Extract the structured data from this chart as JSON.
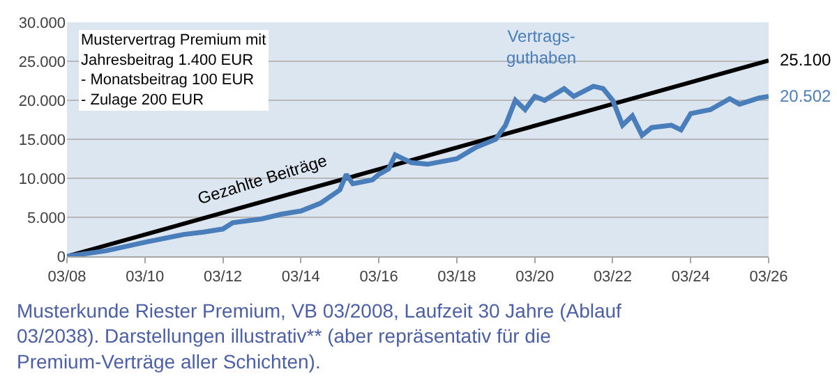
{
  "chart_data": {
    "type": "line",
    "annotations": [
      "Mustervertrag Premium mit\nJahresbeitrag 1.400 EUR\n- Monatsbeitrag 100 EUR\n- Zulage 200 EUR",
      "Musterkunde Riester Premium, VB 03/2008, Laufzeit 30 Jahre (Ablauf 03/2038). Darstellungen illustrativ** (aber repräsentativ für die Premium-Verträge aller Schichten)."
    ],
    "series": [
      {
        "name": "Gezahlte Beiträge",
        "color": "#000000",
        "x": [
          "2008-03",
          "2013-03",
          "2026-03"
        ],
        "values": [
          0,
          6970,
          25100
        ],
        "value_labels": [
          null,
          null,
          "25.100"
        ]
      },
      {
        "name": "Vertrags-\nguthaben",
        "color": "#4a7ebb",
        "x": [
          "2008-03",
          "2009-03",
          "2010-03",
          "2011-03",
          "2011-09",
          "2012-03",
          "2012-06",
          "2013-03",
          "2013-09",
          "2014-03",
          "2014-09",
          "2015-03",
          "2015-05",
          "2015-07",
          "2016-01",
          "2016-03",
          "2016-06",
          "2016-08",
          "2017-01",
          "2017-06",
          "2018-03",
          "2018-09",
          "2019-03",
          "2019-06",
          "2019-09",
          "2019-12",
          "2020-03",
          "2020-06",
          "2020-12",
          "2021-03",
          "2021-09",
          "2021-12",
          "2022-03",
          "2022-06",
          "2022-09",
          "2022-12",
          "2023-03",
          "2023-09",
          "2023-12",
          "2024-03",
          "2024-09",
          "2025-03",
          "2025-06",
          "2025-12",
          "2026-03"
        ],
        "values": [
          0,
          700,
          1800,
          2800,
          3100,
          3500,
          4300,
          4800,
          5400,
          5800,
          6800,
          8500,
          10500,
          9300,
          9800,
          10500,
          11200,
          13000,
          12000,
          11800,
          12500,
          14000,
          15000,
          16800,
          20000,
          18800,
          20500,
          20000,
          21500,
          20500,
          21800,
          21500,
          20000,
          16800,
          18000,
          15500,
          16500,
          16800,
          16200,
          18300,
          18800,
          20200,
          19500,
          20300,
          20502
        ],
        "value_labels": [
          null,
          null,
          null,
          null,
          null,
          null,
          null,
          null,
          null,
          null,
          null,
          null,
          null,
          null,
          null,
          null,
          null,
          null,
          null,
          null,
          null,
          null,
          null,
          null,
          null,
          null,
          null,
          null,
          null,
          null,
          null,
          null,
          null,
          null,
          null,
          null,
          null,
          null,
          null,
          null,
          null,
          null,
          null,
          null,
          "20.502"
        ]
      }
    ],
    "xlim": [
      "2008-03",
      "2026-03"
    ],
    "xticks": [
      {
        "value": "2008-03",
        "label": "03/08"
      },
      {
        "value": "2010-03",
        "label": "03/10"
      },
      {
        "value": "2012-03",
        "label": "03/12"
      },
      {
        "value": "2014-03",
        "label": "03/14"
      },
      {
        "value": "2016-03",
        "label": "03/16"
      },
      {
        "value": "2018-03",
        "label": "03/18"
      },
      {
        "value": "2020-03",
        "label": "03/20"
      },
      {
        "value": "2022-03",
        "label": "03/22"
      },
      {
        "value": "2024-03",
        "label": "03/24"
      },
      {
        "value": "2026-03",
        "label": "03/26"
      }
    ],
    "ylim": [
      0,
      30000
    ],
    "yticks": [
      0,
      {
        "value": 5000,
        "label": "5.000"
      },
      {
        "value": 10000,
        "label": "10.000"
      },
      {
        "value": 15000,
        "label": "15.000"
      },
      {
        "value": 20000,
        "label": "20.000"
      },
      {
        "value": 25000,
        "label": "25.000"
      },
      {
        "value": 30000,
        "label": "30.000"
      }
    ],
    "grid": "y",
    "legend": false,
    "marker": "none",
    "line_style": "solid"
  }
}
